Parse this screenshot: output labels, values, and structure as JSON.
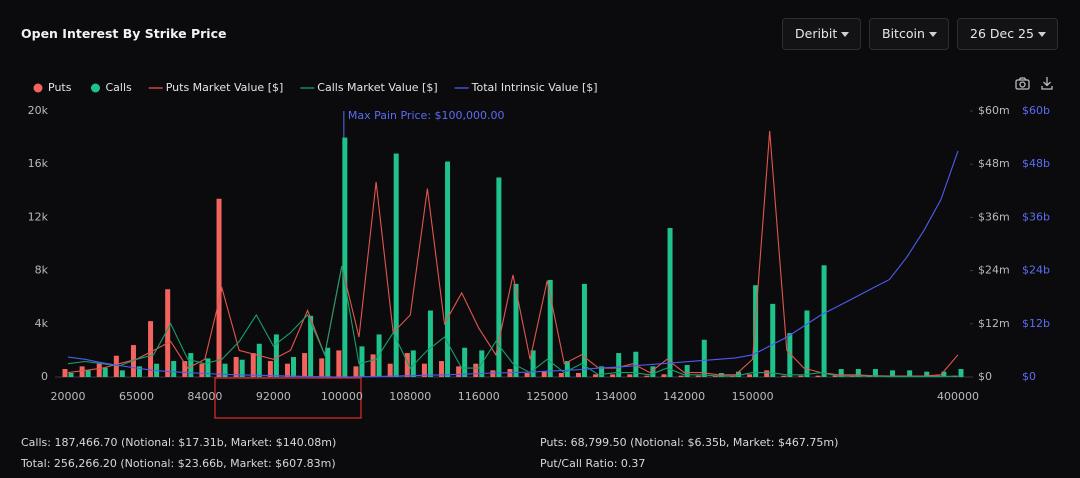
{
  "header": {
    "title": "Open Interest By Strike Price",
    "filters": [
      "Deribit",
      "Bitcoin",
      "26 Dec 25"
    ]
  },
  "chart_data": {
    "type": "bar",
    "categories": [
      "20000",
      null,
      null,
      null,
      "65000",
      null,
      null,
      null,
      "84000",
      null,
      null,
      null,
      "92000",
      null,
      null,
      null,
      "100000",
      null,
      null,
      null,
      "108000",
      null,
      null,
      null,
      "116000",
      null,
      null,
      null,
      "125000",
      null,
      null,
      null,
      "134000",
      null,
      null,
      null,
      "142000",
      null,
      null,
      null,
      "150000",
      null,
      null,
      null,
      null,
      null,
      null,
      null,
      null,
      null,
      null,
      null,
      "400000"
    ],
    "series": [
      {
        "name": "Puts",
        "type": "bar",
        "color": "#f4645f",
        "values": [
          600,
          800,
          1000,
          1600,
          2400,
          4200,
          6600,
          1200,
          1000,
          13400,
          1500,
          1800,
          1200,
          1000,
          1800,
          1400,
          2000,
          800,
          1700,
          1000,
          1800,
          1000,
          1200,
          800,
          1000,
          500,
          600,
          300,
          400,
          300,
          300,
          200,
          200,
          200,
          100,
          200,
          100,
          100,
          100,
          100,
          200,
          500,
          100,
          100,
          100,
          100,
          100,
          100,
          100,
          100,
          100,
          100,
          100
        ]
      },
      {
        "name": "Calls",
        "type": "bar",
        "color": "#1fc28b",
        "values": [
          300,
          500,
          700,
          500,
          800,
          1000,
          1200,
          1800,
          1400,
          1000,
          1300,
          2500,
          3200,
          1500,
          4600,
          2200,
          18000,
          2300,
          3200,
          16800,
          2000,
          5000,
          16200,
          2200,
          2000,
          15000,
          7000,
          2000,
          7300,
          1200,
          7000,
          800,
          1800,
          1900,
          800,
          11200,
          900,
          2800,
          300,
          400,
          6900,
          5500,
          3300,
          5000,
          8400,
          600,
          600,
          600,
          500,
          500,
          400,
          400,
          600
        ]
      },
      {
        "name": "Puts Market Value [$]",
        "type": "line",
        "axis": "y2",
        "color": "#e2554f",
        "values": [
          1,
          1.5,
          2,
          3,
          4,
          6,
          8,
          2,
          4,
          20,
          6,
          5,
          4,
          6,
          15,
          5,
          25,
          9,
          44,
          10,
          14,
          42.5,
          12,
          19,
          11,
          5,
          23,
          4,
          21.7,
          3,
          5,
          2,
          2,
          3,
          1,
          4,
          1,
          1,
          0.5,
          0.5,
          4,
          55.5,
          6,
          2,
          1,
          0.5,
          0.5,
          0.3,
          0.2,
          0.2,
          0.2,
          0.5,
          5
        ]
      },
      {
        "name": "Calls Market Value [$]",
        "type": "line",
        "axis": "y2",
        "color": "#199e6c",
        "values": [
          3,
          3.5,
          3,
          2.5,
          4,
          5,
          12,
          4,
          3,
          4,
          8,
          14,
          7,
          10,
          14,
          5,
          25,
          3,
          4,
          10,
          2,
          6,
          9,
          2,
          2,
          8,
          3,
          1,
          4,
          1,
          3,
          0.5,
          1,
          1,
          0.5,
          2,
          0.5,
          0.5,
          0.2,
          0.2,
          1,
          1,
          0.5,
          0.5,
          1,
          0.2,
          0.2,
          0.2,
          0.1,
          0.1,
          0.1,
          0.1,
          0.2
        ]
      },
      {
        "name": "Total Intrinsic Value [$]",
        "type": "line",
        "axis": "y3",
        "color": "#4d5cf0",
        "values": [
          4.5,
          4,
          3.2,
          2.6,
          2,
          1.5,
          1.2,
          1,
          0.8,
          0.6,
          0.5,
          0.4,
          0.3,
          0.2,
          0.1,
          0.05,
          0,
          0.05,
          0.1,
          0.2,
          0.3,
          0.4,
          0.5,
          0.6,
          0.8,
          0.9,
          1,
          1.1,
          1.3,
          1.5,
          1.7,
          2,
          2.2,
          2.5,
          2.8,
          3.1,
          3.4,
          3.7,
          4,
          4.3,
          5,
          7,
          9,
          11.5,
          14,
          16,
          18,
          20,
          22,
          27,
          33,
          40,
          51
        ]
      }
    ],
    "ylim": [
      0,
      20000
    ],
    "yticks": [
      0,
      {
        "value": 4000,
        "label": "4k"
      },
      {
        "value": 8000,
        "label": "8k"
      },
      {
        "value": 12000,
        "label": "12k"
      },
      {
        "value": 16000,
        "label": "16k"
      },
      {
        "value": 20000,
        "label": "20k"
      }
    ],
    "y2lim": [
      0,
      60
    ],
    "y2ticks": [
      {
        "value": 0,
        "label": "$0"
      },
      {
        "value": 12,
        "label": "$12m"
      },
      {
        "value": 24,
        "label": "$24m"
      },
      {
        "value": 36,
        "label": "$36m"
      },
      {
        "value": 48,
        "label": "$48m"
      },
      {
        "value": 60,
        "label": "$60m"
      }
    ],
    "y3lim": [
      0,
      60
    ],
    "y3ticks": [
      {
        "value": 0,
        "label": "$0"
      },
      {
        "value": 12,
        "label": "$12b"
      },
      {
        "value": 24,
        "label": "$24b"
      },
      {
        "value": 36,
        "label": "$36b"
      },
      {
        "value": 48,
        "label": "$48b"
      },
      {
        "value": 60,
        "label": "$60b"
      }
    ],
    "y3color": "#5b6cf5",
    "annotation": {
      "text": "Max Pain Price: $100,000.00",
      "category": "100000",
      "color": "#5b6cf5"
    }
  },
  "summary": {
    "calls": "Calls: 187,466.70 (Notional: $17.31b, Market: $140.08m)",
    "total": "Total: 256,266.20 (Notional: $23.66b, Market: $607.83m)",
    "puts": "Puts: 68,799.50 (Notional: $6.35b, Market: $467.75m)",
    "ratio": "Put/Call Ratio: 0.37"
  }
}
